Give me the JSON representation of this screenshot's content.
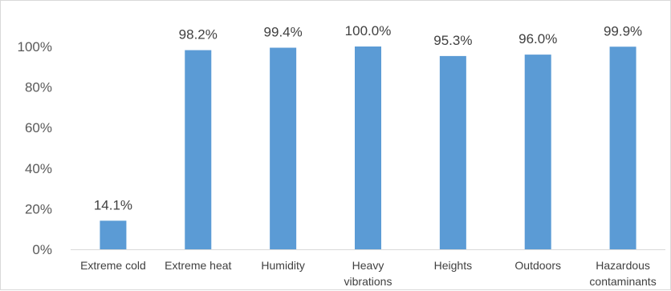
{
  "chart_data": {
    "type": "bar",
    "categories": [
      [
        "Extreme cold"
      ],
      [
        "Extreme heat"
      ],
      [
        "Humidity"
      ],
      [
        "Heavy",
        "vibrations"
      ],
      [
        "Heights"
      ],
      [
        "Outdoors"
      ],
      [
        "Hazardous",
        "contaminants"
      ]
    ],
    "values": [
      14.1,
      98.2,
      99.4,
      100.0,
      95.3,
      96.0,
      99.9
    ],
    "data_labels": [
      "14.1%",
      "98.2%",
      "99.4%",
      "100.0%",
      "95.3%",
      "96.0%",
      "99.9%"
    ],
    "y_ticks": [
      0,
      20,
      40,
      60,
      80,
      100
    ],
    "y_tick_labels": [
      "0%",
      "20%",
      "40%",
      "60%",
      "80%",
      "100%"
    ],
    "ylim": [
      0,
      100
    ],
    "grid": false,
    "legend": "none",
    "bar_color": "#5b9bd5",
    "axis_color": "#d9d9d9"
  }
}
